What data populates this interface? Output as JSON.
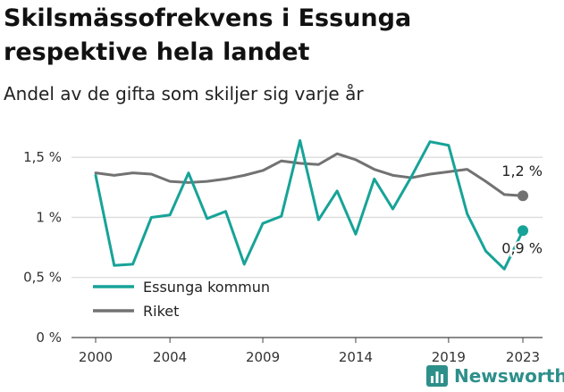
{
  "header": {
    "title": "Skilsmässofrekvens i Essunga respektive hela landet",
    "subtitle": "Andel av de gifta som skiljer sig varje år"
  },
  "brand": {
    "name": "Newsworthy",
    "icon": "bar-chart-icon",
    "color": "#2d8f8a"
  },
  "chart_data": {
    "type": "line",
    "x": [
      2000,
      2001,
      2002,
      2003,
      2004,
      2005,
      2006,
      2007,
      2008,
      2009,
      2010,
      2011,
      2012,
      2013,
      2014,
      2015,
      2016,
      2017,
      2018,
      2019,
      2020,
      2021,
      2022,
      2023
    ],
    "xticks": [
      {
        "value": 2000,
        "label": "2000"
      },
      {
        "value": 2004,
        "label": "2004"
      },
      {
        "value": 2009,
        "label": "2009"
      },
      {
        "value": 2014,
        "label": "2014"
      },
      {
        "value": 2019,
        "label": "2019"
      },
      {
        "value": 2023,
        "label": "2023"
      }
    ],
    "ylim": [
      0,
      1.65
    ],
    "yticks": [
      {
        "value": 0,
        "label": "0 %"
      },
      {
        "value": 0.5,
        "label": "0,5 %"
      },
      {
        "value": 1.0,
        "label": "1 %"
      },
      {
        "value": 1.5,
        "label": "1,5 %"
      }
    ],
    "grid": true,
    "legend_position": "bottom-left",
    "series": [
      {
        "name": "Essunga kommun",
        "color": "#17a398",
        "values": [
          1.35,
          0.6,
          0.61,
          1.0,
          1.02,
          1.37,
          0.99,
          1.05,
          0.61,
          0.95,
          1.01,
          1.64,
          0.98,
          1.22,
          0.86,
          1.32,
          1.07,
          1.34,
          1.63,
          1.6,
          1.03,
          0.72,
          0.57,
          0.89
        ],
        "end_label": "0,9 %"
      },
      {
        "name": "Riket",
        "color": "#727272",
        "values": [
          1.37,
          1.35,
          1.37,
          1.36,
          1.3,
          1.29,
          1.3,
          1.32,
          1.35,
          1.39,
          1.47,
          1.45,
          1.44,
          1.53,
          1.48,
          1.4,
          1.35,
          1.33,
          1.36,
          1.38,
          1.4,
          1.3,
          1.19,
          1.18
        ],
        "end_label": "1,2 %"
      }
    ]
  }
}
